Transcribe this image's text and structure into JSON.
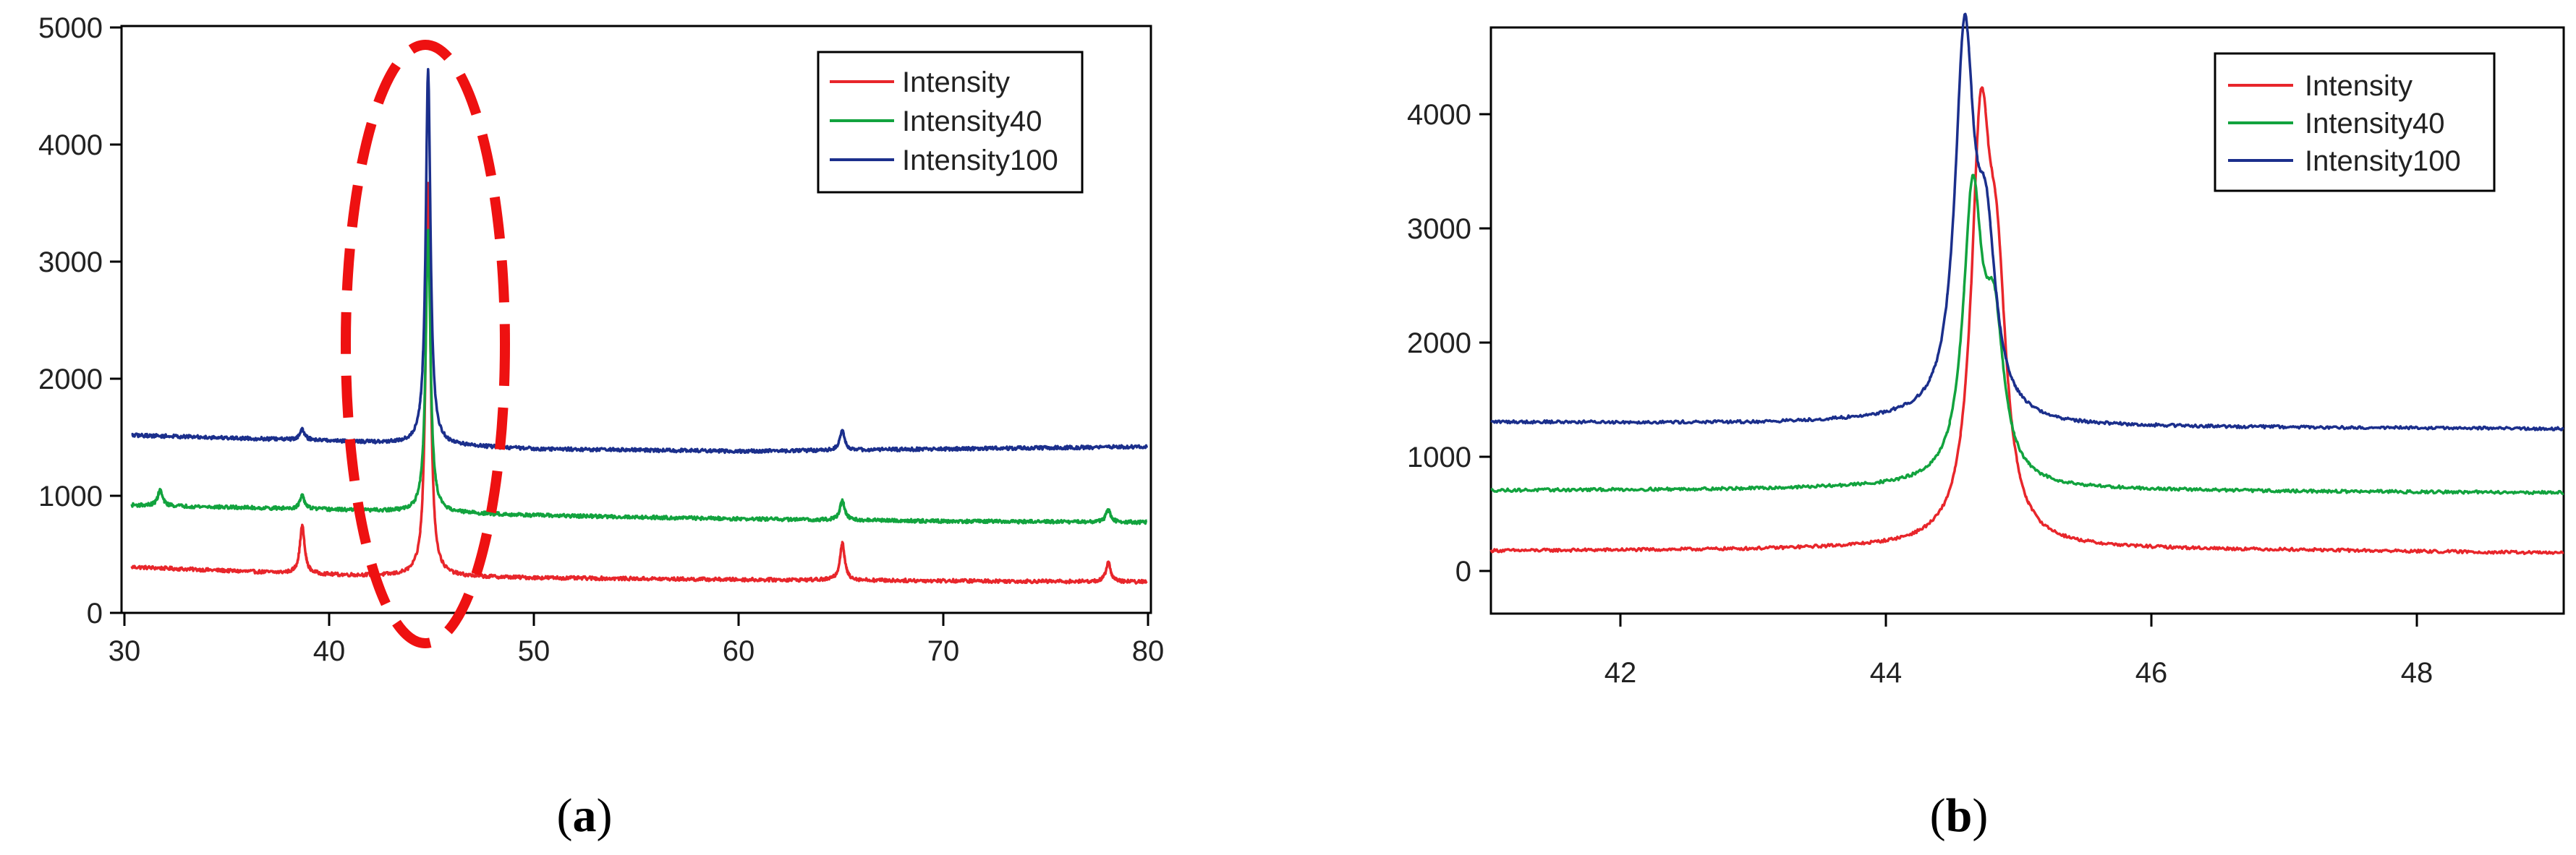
{
  "chart_data": [
    {
      "type": "line",
      "panel_caption_open": "(",
      "panel_caption_letter": "a",
      "panel_caption_close": ")",
      "xlim": [
        29.5,
        80.2
      ],
      "ylim": [
        -120,
        5000
      ],
      "x_ticks": [
        30,
        40,
        50,
        60,
        70,
        80
      ],
      "x_tick_labels": [
        "30",
        "40",
        "50",
        "60",
        "70",
        "80"
      ],
      "y_ticks": [
        0,
        1000,
        2000,
        3000,
        4000,
        5000
      ],
      "y_tick_labels": [
        "0",
        "1000",
        "2000",
        "3000",
        "4000",
        "5000"
      ],
      "legend_position": "top-right",
      "annotation": "red dashed ellipse around the peak near 44.6",
      "series": [
        {
          "name": "Intensity",
          "color": "#e8262b",
          "baseline_points": [
            [
              30,
              280
            ],
            [
              40,
              210
            ],
            [
              50,
              185
            ],
            [
              60,
              170
            ],
            [
              70,
              160
            ],
            [
              80,
              150
            ]
          ],
          "peaks": [
            [
              38.4,
              640
            ],
            [
              44.6,
              3630
            ],
            [
              65.0,
              490
            ],
            [
              78.1,
              320
            ]
          ]
        },
        {
          "name": "Intensity40",
          "color": "#12a33e",
          "baseline_points": [
            [
              30,
              820
            ],
            [
              40,
              780
            ],
            [
              50,
              730
            ],
            [
              60,
              700
            ],
            [
              70,
              680
            ],
            [
              80,
              670
            ]
          ],
          "peaks": [
            [
              31.4,
              950
            ],
            [
              38.4,
              900
            ],
            [
              44.6,
              3220
            ],
            [
              65.0,
              860
            ],
            [
              78.1,
              780
            ]
          ]
        },
        {
          "name": "Intensity100",
          "color": "#1b2f8c",
          "baseline_points": [
            [
              30,
              1430
            ],
            [
              40,
              1380
            ],
            [
              50,
              1310
            ],
            [
              60,
              1290
            ],
            [
              70,
              1310
            ],
            [
              80,
              1330
            ]
          ],
          "peaks": [
            [
              38.4,
              1480
            ],
            [
              44.6,
              4620
            ],
            [
              65.0,
              1470
            ]
          ]
        }
      ]
    },
    {
      "type": "line",
      "panel_caption_open": "(",
      "panel_caption_letter": "b",
      "panel_caption_close": ")",
      "xlim": [
        41.05,
        49.0
      ],
      "ylim": [
        -340,
        4800
      ],
      "x_ticks": [
        42,
        44,
        46,
        48
      ],
      "x_tick_labels": [
        "42",
        "44",
        "46",
        "48"
      ],
      "y_ticks": [
        0,
        1000,
        2000,
        3000,
        4000
      ],
      "y_tick_labels": [
        "0",
        "1000",
        "2000",
        "3000",
        "4000"
      ],
      "legend_position": "top-right",
      "series": [
        {
          "name": "Intensity",
          "color": "#e8262b",
          "baseline_points": [
            [
              41.1,
              210
            ],
            [
              43,
              220
            ],
            [
              44.3,
              240
            ],
            [
              45.2,
              230
            ],
            [
              47,
              215
            ],
            [
              49,
              190
            ]
          ],
          "peaks": [
            [
              44.68,
              3630
            ],
            [
              44.8,
              2100
            ]
          ]
        },
        {
          "name": "Intensity40",
          "color": "#12a33e",
          "baseline_points": [
            [
              41.1,
              740
            ],
            [
              43,
              750
            ],
            [
              44.2,
              770
            ],
            [
              45.2,
              750
            ],
            [
              47,
              730
            ],
            [
              49,
              720
            ]
          ],
          "peaks": [
            [
              44.62,
              3230
            ],
            [
              44.78,
              2000
            ]
          ]
        },
        {
          "name": "Intensity100",
          "color": "#1b2f8c",
          "baseline_points": [
            [
              41.1,
              1340
            ],
            [
              43,
              1330
            ],
            [
              44.1,
              1350
            ],
            [
              45.3,
              1300
            ],
            [
              47,
              1290
            ],
            [
              49,
              1280
            ]
          ],
          "peaks": [
            [
              44.56,
              4600
            ],
            [
              44.72,
              2700
            ]
          ]
        }
      ]
    }
  ]
}
